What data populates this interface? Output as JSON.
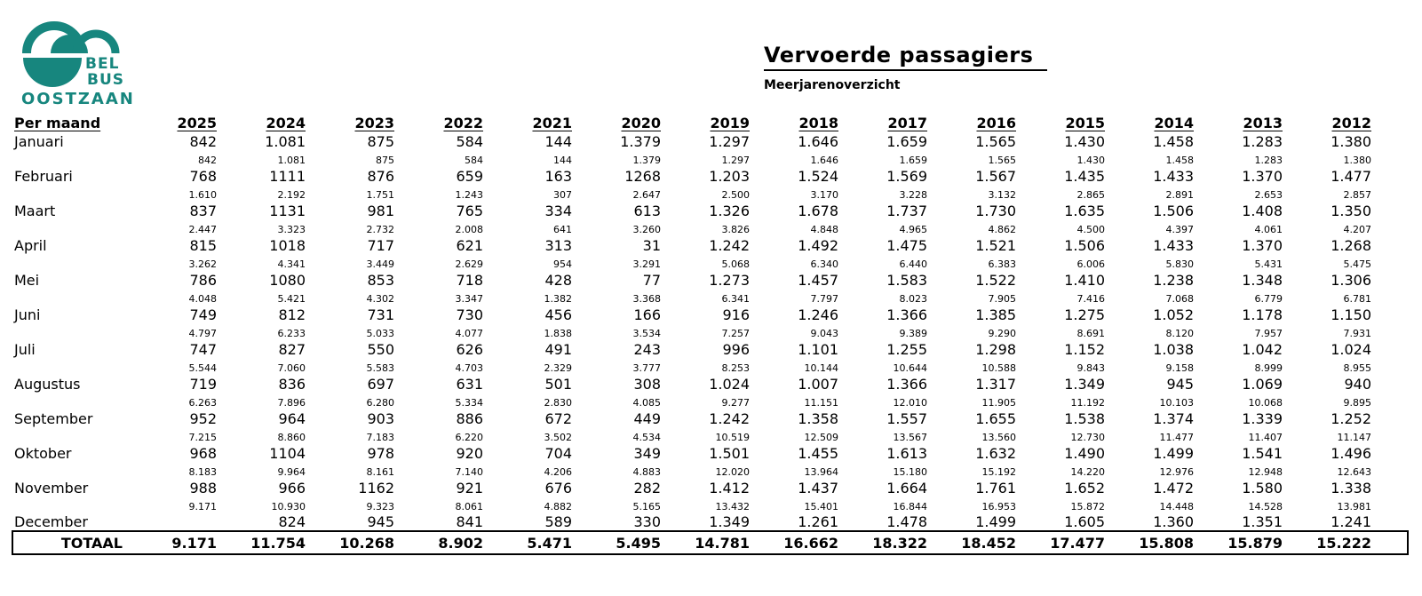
{
  "logo": {
    "line1": "BEL",
    "line2": "BUS",
    "line3": "OOSTZAAN",
    "color": "#17867E"
  },
  "header": {
    "title": "Vervoerde passagiers",
    "subtitle": "Meerjarenoverzicht"
  },
  "table": {
    "row_header": "Per maand",
    "years": [
      "2025",
      "2024",
      "2023",
      "2022",
      "2021",
      "2020",
      "2019",
      "2018",
      "2017",
      "2016",
      "2015",
      "2014",
      "2013",
      "2012"
    ],
    "months": [
      {
        "name": "Januari",
        "values": [
          "842",
          "1.081",
          "875",
          "584",
          "144",
          "1.379",
          "1.297",
          "1.646",
          "1.659",
          "1.565",
          "1.430",
          "1.458",
          "1.283",
          "1.380"
        ],
        "cumulative": [
          "842",
          "1.081",
          "875",
          "584",
          "144",
          "1.379",
          "1.297",
          "1.646",
          "1.659",
          "1.565",
          "1.430",
          "1.458",
          "1.283",
          "1.380"
        ]
      },
      {
        "name": "Februari",
        "values": [
          "768",
          "1111",
          "876",
          "659",
          "163",
          "1268",
          "1.203",
          "1.524",
          "1.569",
          "1.567",
          "1.435",
          "1.433",
          "1.370",
          "1.477"
        ],
        "cumulative": [
          "1.610",
          "2.192",
          "1.751",
          "1.243",
          "307",
          "2.647",
          "2.500",
          "3.170",
          "3.228",
          "3.132",
          "2.865",
          "2.891",
          "2.653",
          "2.857"
        ]
      },
      {
        "name": "Maart",
        "values": [
          "837",
          "1131",
          "981",
          "765",
          "334",
          "613",
          "1.326",
          "1.678",
          "1.737",
          "1.730",
          "1.635",
          "1.506",
          "1.408",
          "1.350"
        ],
        "cumulative": [
          "2.447",
          "3.323",
          "2.732",
          "2.008",
          "641",
          "3.260",
          "3.826",
          "4.848",
          "4.965",
          "4.862",
          "4.500",
          "4.397",
          "4.061",
          "4.207"
        ]
      },
      {
        "name": "April",
        "values": [
          "815",
          "1018",
          "717",
          "621",
          "313",
          "31",
          "1.242",
          "1.492",
          "1.475",
          "1.521",
          "1.506",
          "1.433",
          "1.370",
          "1.268"
        ],
        "cumulative": [
          "3.262",
          "4.341",
          "3.449",
          "2.629",
          "954",
          "3.291",
          "5.068",
          "6.340",
          "6.440",
          "6.383",
          "6.006",
          "5.830",
          "5.431",
          "5.475"
        ]
      },
      {
        "name": "Mei",
        "values": [
          "786",
          "1080",
          "853",
          "718",
          "428",
          "77",
          "1.273",
          "1.457",
          "1.583",
          "1.522",
          "1.410",
          "1.238",
          "1.348",
          "1.306"
        ],
        "cumulative": [
          "4.048",
          "5.421",
          "4.302",
          "3.347",
          "1.382",
          "3.368",
          "6.341",
          "7.797",
          "8.023",
          "7.905",
          "7.416",
          "7.068",
          "6.779",
          "6.781"
        ]
      },
      {
        "name": "Juni",
        "values": [
          "749",
          "812",
          "731",
          "730",
          "456",
          "166",
          "916",
          "1.246",
          "1.366",
          "1.385",
          "1.275",
          "1.052",
          "1.178",
          "1.150"
        ],
        "cumulative": [
          "4.797",
          "6.233",
          "5.033",
          "4.077",
          "1.838",
          "3.534",
          "7.257",
          "9.043",
          "9.389",
          "9.290",
          "8.691",
          "8.120",
          "7.957",
          "7.931"
        ]
      },
      {
        "name": "Juli",
        "values": [
          "747",
          "827",
          "550",
          "626",
          "491",
          "243",
          "996",
          "1.101",
          "1.255",
          "1.298",
          "1.152",
          "1.038",
          "1.042",
          "1.024"
        ],
        "cumulative": [
          "5.544",
          "7.060",
          "5.583",
          "4.703",
          "2.329",
          "3.777",
          "8.253",
          "10.144",
          "10.644",
          "10.588",
          "9.843",
          "9.158",
          "8.999",
          "8.955"
        ]
      },
      {
        "name": "Augustus",
        "values": [
          "719",
          "836",
          "697",
          "631",
          "501",
          "308",
          "1.024",
          "1.007",
          "1.366",
          "1.317",
          "1.349",
          "945",
          "1.069",
          "940"
        ],
        "cumulative": [
          "6.263",
          "7.896",
          "6.280",
          "5.334",
          "2.830",
          "4.085",
          "9.277",
          "11.151",
          "12.010",
          "11.905",
          "11.192",
          "10.103",
          "10.068",
          "9.895"
        ]
      },
      {
        "name": "September",
        "values": [
          "952",
          "964",
          "903",
          "886",
          "672",
          "449",
          "1.242",
          "1.358",
          "1.557",
          "1.655",
          "1.538",
          "1.374",
          "1.339",
          "1.252"
        ],
        "cumulative": [
          "7.215",
          "8.860",
          "7.183",
          "6.220",
          "3.502",
          "4.534",
          "10.519",
          "12.509",
          "13.567",
          "13.560",
          "12.730",
          "11.477",
          "11.407",
          "11.147"
        ]
      },
      {
        "name": "Oktober",
        "values": [
          "968",
          "1104",
          "978",
          "920",
          "704",
          "349",
          "1.501",
          "1.455",
          "1.613",
          "1.632",
          "1.490",
          "1.499",
          "1.541",
          "1.496"
        ],
        "cumulative": [
          "8.183",
          "9.964",
          "8.161",
          "7.140",
          "4.206",
          "4.883",
          "12.020",
          "13.964",
          "15.180",
          "15.192",
          "14.220",
          "12.976",
          "12.948",
          "12.643"
        ]
      },
      {
        "name": "November",
        "values": [
          "988",
          "966",
          "1162",
          "921",
          "676",
          "282",
          "1.412",
          "1.437",
          "1.664",
          "1.761",
          "1.652",
          "1.472",
          "1.580",
          "1.338"
        ],
        "cumulative": [
          "9.171",
          "10.930",
          "9.323",
          "8.061",
          "4.882",
          "5.165",
          "13.432",
          "15.401",
          "16.844",
          "16.953",
          "15.872",
          "14.448",
          "14.528",
          "13.981"
        ]
      },
      {
        "name": "December",
        "values": [
          "",
          "824",
          "945",
          "841",
          "589",
          "330",
          "1.349",
          "1.261",
          "1.478",
          "1.499",
          "1.605",
          "1.360",
          "1.351",
          "1.241"
        ],
        "cumulative": null
      }
    ],
    "total": {
      "label": "TOTAAL",
      "values": [
        "9.171",
        "11.754",
        "10.268",
        "8.902",
        "5.471",
        "5.495",
        "14.781",
        "16.662",
        "18.322",
        "18.452",
        "17.477",
        "15.808",
        "15.879",
        "15.222"
      ]
    }
  }
}
